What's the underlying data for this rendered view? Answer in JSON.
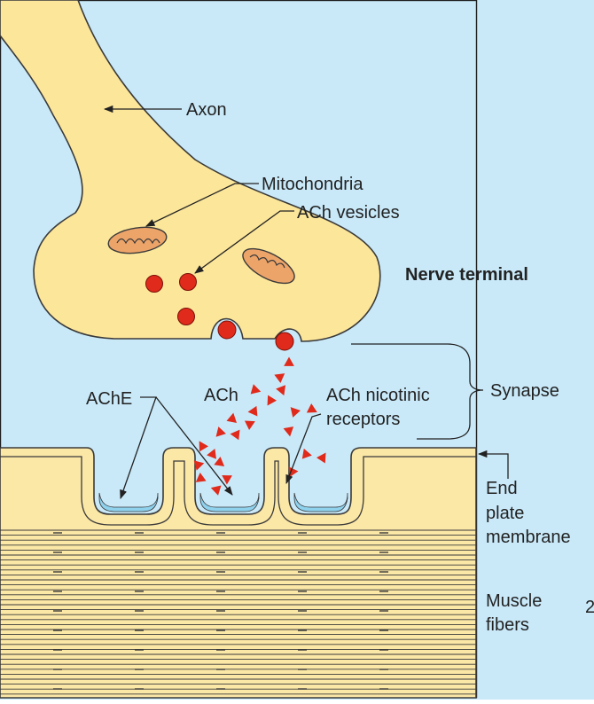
{
  "labels": {
    "axon": "Axon",
    "mitochondria": "Mitochondria",
    "ach_vesicles": "ACh vesicles",
    "nerve_terminal": "Nerve terminal",
    "ache": "AChE",
    "ach": "ACh",
    "ach_nicotinic_line1": "ACh nicotinic",
    "ach_nicotinic_line2": "receptors",
    "synapse": "Synapse",
    "end_plate_line1": "End",
    "end_plate_line2": "plate",
    "end_plate_line3": "membrane",
    "muscle_line1": "Muscle",
    "muscle_line2": "fibers",
    "edge_fragment": "2"
  },
  "colors": {
    "background": "#c9e9f9",
    "neuron_fill": "#fce69a",
    "muscle_fill": "#fbe7a6",
    "muscle_stripes": "#f3d991",
    "outline": "#3a3a3a",
    "vesicle": "#e02a1b",
    "ach_molecule": "#e02a1b",
    "mitochondria_fill": "#eda469",
    "receptor_fill": "#8fd2ee",
    "label_text": "#222222"
  }
}
